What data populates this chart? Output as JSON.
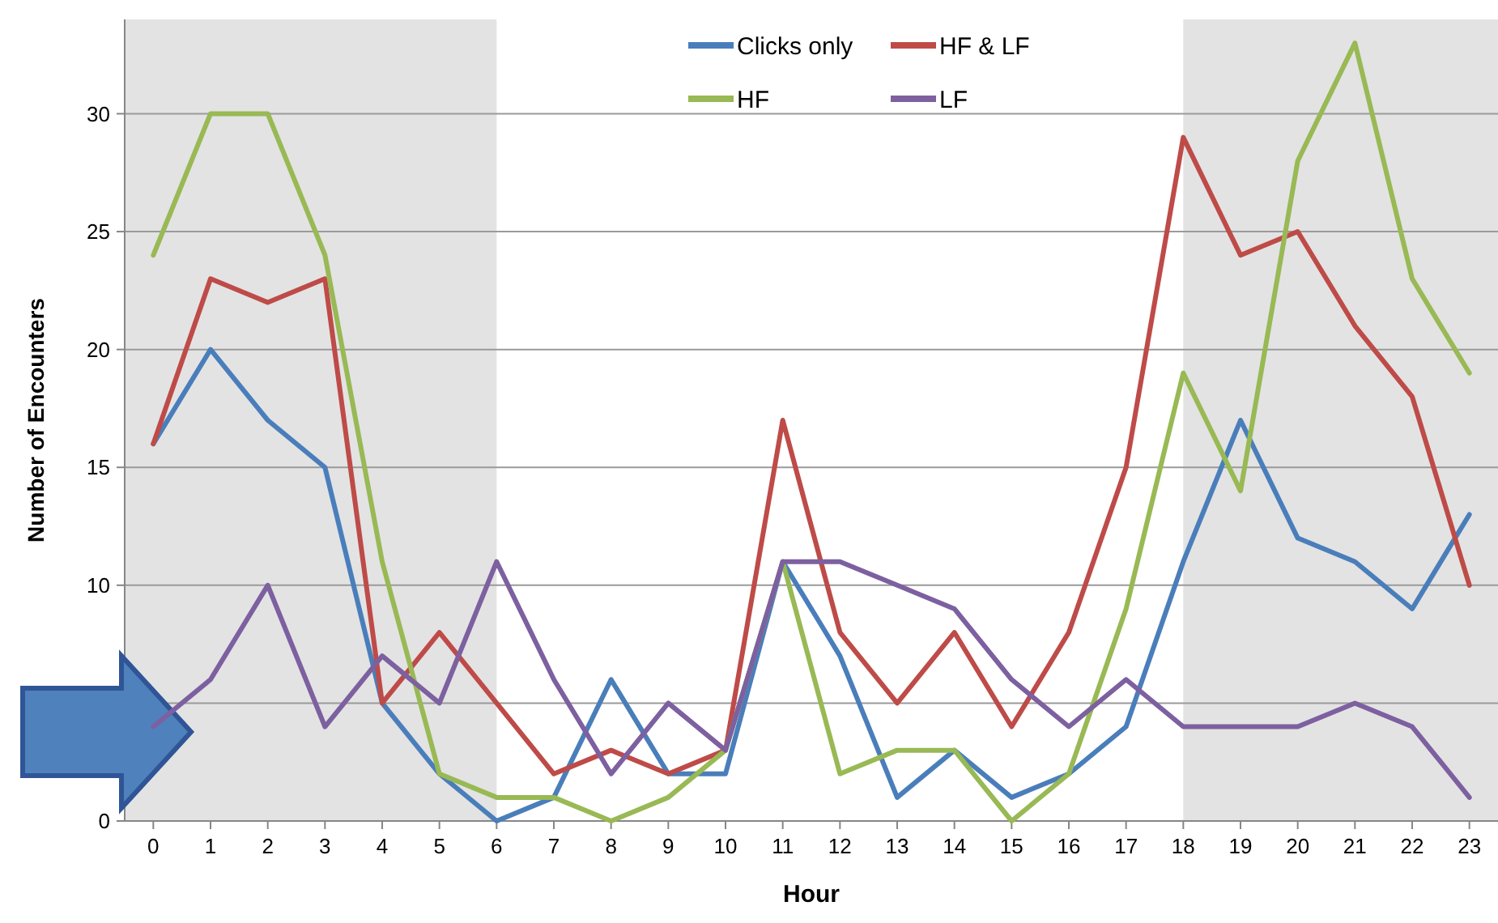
{
  "chart_data": {
    "type": "line",
    "xlabel": "Hour",
    "ylabel": "Number of Encounters",
    "x": [
      0,
      1,
      2,
      3,
      4,
      5,
      6,
      7,
      8,
      9,
      10,
      11,
      12,
      13,
      14,
      15,
      16,
      17,
      18,
      19,
      20,
      21,
      22,
      23
    ],
    "xlim": [
      -0.5,
      23.5
    ],
    "xticks": [
      0,
      1,
      2,
      3,
      4,
      5,
      6,
      7,
      8,
      9,
      10,
      11,
      12,
      13,
      14,
      15,
      16,
      17,
      18,
      19,
      20,
      21,
      22,
      23
    ],
    "ylim": [
      0,
      34
    ],
    "yticks": [
      0,
      {
        "value": 5,
        "label": null
      },
      10,
      15,
      20,
      25,
      30
    ],
    "grid": "y",
    "legend": "top",
    "marker": "none",
    "line_style": "solid",
    "bands": [
      {
        "axis": "x",
        "from": -0.5,
        "to": 6,
        "color": "#e3e3e3"
      },
      {
        "axis": "x",
        "from": 18,
        "to": 23.5,
        "color": "#e3e3e3"
      }
    ],
    "series": [
      {
        "name": "Clicks only",
        "color": "#4a7ebb",
        "values": [
          16,
          20,
          17,
          15,
          5,
          2,
          0,
          1,
          6,
          2,
          2,
          11,
          7,
          1,
          3,
          1,
          2,
          4,
          11,
          17,
          12,
          11,
          9,
          13
        ]
      },
      {
        "name": "HF & LF",
        "color": "#be4b48",
        "values": [
          16,
          23,
          22,
          23,
          5,
          8,
          5,
          2,
          3,
          2,
          3,
          17,
          8,
          5,
          8,
          4,
          8,
          15,
          29,
          24,
          25,
          21,
          18,
          10
        ]
      },
      {
        "name": "HF",
        "color": "#98b954",
        "values": [
          24,
          30,
          30,
          24,
          11,
          2,
          1,
          1,
          0,
          1,
          3,
          11,
          2,
          3,
          3,
          0,
          2,
          9,
          19,
          14,
          28,
          33,
          23,
          19
        ]
      },
      {
        "name": "LF",
        "color": "#7d60a0",
        "values": [
          4,
          6,
          10,
          4,
          7,
          5,
          11,
          6,
          2,
          5,
          3,
          11,
          11,
          10,
          9,
          6,
          4,
          6,
          4,
          4,
          4,
          5,
          4,
          1
        ]
      }
    ]
  }
}
